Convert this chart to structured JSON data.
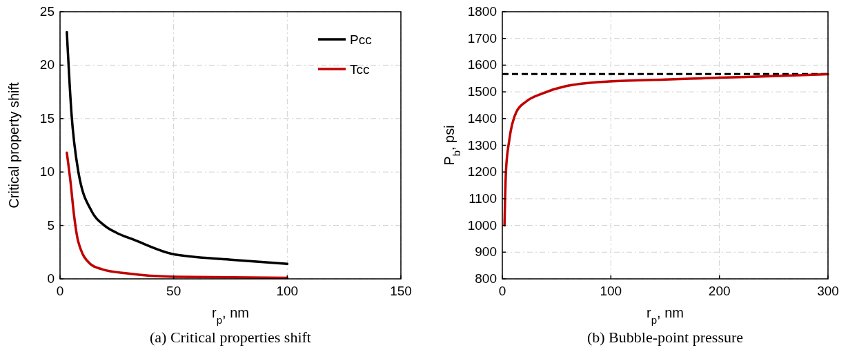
{
  "chart_data": [
    {
      "type": "line",
      "title": "(a)  Critical properties shift",
      "xlabel": "r$_{p}$, nm",
      "ylabel": "Critical property shift",
      "xlim": [
        0,
        150
      ],
      "xticks": [
        0,
        50,
        100,
        150
      ],
      "ylim": [
        0,
        25
      ],
      "yticks": [
        0,
        5,
        10,
        15,
        20,
        25
      ],
      "grid": true,
      "legend": "top right",
      "line_style": "solid",
      "series": [
        {
          "name": "Pcc",
          "color": "#000000",
          "x": [
            3,
            5,
            8,
            14,
            19.5,
            25,
            32,
            50,
            75,
            100
          ],
          "values": [
            23.1,
            15.6,
            10.1,
            6.3,
            5.0,
            4.3,
            3.7,
            2.3,
            1.8,
            1.4
          ]
        },
        {
          "name": "Tcc",
          "color": "#c00000",
          "x": [
            3,
            4.6,
            6.2,
            8,
            13.3,
            18.5,
            30,
            50,
            100
          ],
          "values": [
            11.8,
            9.1,
            5.9,
            3.5,
            1.4,
            0.9,
            0.5,
            0.2,
            0.1
          ]
        }
      ]
    },
    {
      "type": "line",
      "title": "(b) Bubble-point pressure",
      "xlabel": "r$_{p}$, nm",
      "ylabel": "P$_{b}$, psi",
      "xlim": [
        0,
        300
      ],
      "xticks": [
        0,
        100,
        200,
        300
      ],
      "ylim": [
        800,
        1800
      ],
      "yticks": [
        800,
        900,
        1000,
        1100,
        1200,
        1300,
        1400,
        1500,
        1600,
        1700,
        1800
      ],
      "grid": true,
      "legend": false,
      "line_style": "solid",
      "series": [
        {
          "color": "#c00000",
          "x": [
            2,
            3.4,
            6.4,
            12.7,
            22,
            37.5,
            58,
            98.5,
            150,
            200,
            250,
            300
          ],
          "values": [
            1000,
            1206,
            1319,
            1423,
            1464,
            1495,
            1521,
            1539,
            1546,
            1553,
            1559,
            1566
          ]
        }
      ],
      "ref_lines": [
        {
          "axis": "y",
          "value": 1567,
          "color": "#000000",
          "line_style": "dashed"
        }
      ]
    }
  ]
}
